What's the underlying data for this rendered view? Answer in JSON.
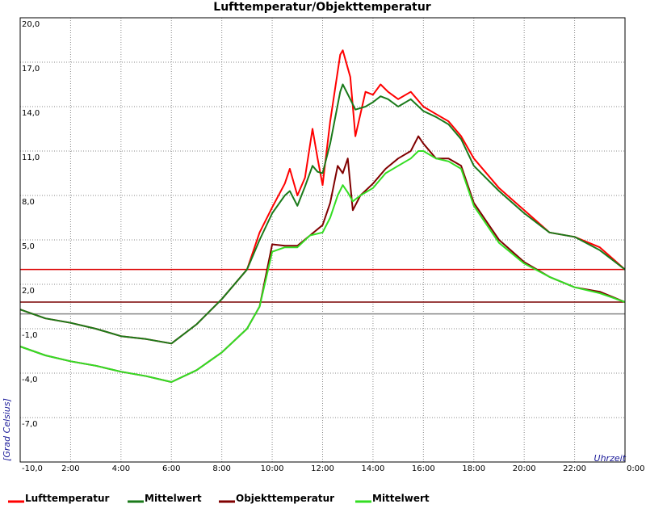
{
  "chart_data": {
    "type": "line",
    "title": "Lufttemperatur/Objekttemperatur",
    "xlabel": "Uhrzeit",
    "ylabel": "[Grad Celsius]",
    "xlim": [
      0,
      24
    ],
    "ylim": [
      -10,
      20
    ],
    "y_ticks": [
      "20,0",
      "17,0",
      "14,0",
      "11,0",
      "8,0",
      "5,0",
      "2,0",
      "-1,0",
      "-4,0",
      "-7,0",
      "-10,0"
    ],
    "y_tick_values": [
      20,
      17,
      14,
      11,
      8,
      5,
      2,
      -1,
      -4,
      -7,
      -10
    ],
    "x_ticks": [
      "2:00",
      "4:00",
      "6:00",
      "8:00",
      "10:00",
      "12:00",
      "14:00",
      "16:00",
      "18:00",
      "20:00",
      "22:00",
      "0:00"
    ],
    "x_tick_values": [
      2,
      4,
      6,
      8,
      10,
      12,
      14,
      16,
      18,
      20,
      22,
      24
    ],
    "grid": true,
    "legend_position": "bottom",
    "reference_lines": [
      {
        "y": 3.0,
        "color": "#dd0000"
      },
      {
        "y": 0.8,
        "color": "#7a0000"
      },
      {
        "y": 0.0,
        "color": "#888888"
      }
    ],
    "series": [
      {
        "name": "Lufttemperatur",
        "color": "#ff0000",
        "x": [
          0,
          1,
          2,
          3,
          4,
          5,
          6,
          7,
          8,
          9,
          9.5,
          10,
          10.5,
          10.7,
          11,
          11.3,
          11.6,
          11.8,
          12,
          12.3,
          12.7,
          12.8,
          13.1,
          13.3,
          13.7,
          14,
          14.3,
          14.6,
          15,
          15.5,
          16,
          16.5,
          17,
          17.5,
          18,
          19,
          20,
          21,
          22,
          23,
          24
        ],
        "y": [
          0.3,
          -0.3,
          -0.6,
          -1.0,
          -1.5,
          -1.7,
          -2.0,
          -0.7,
          1.0,
          3.0,
          5.5,
          7.2,
          8.8,
          9.8,
          8.0,
          9.2,
          12.5,
          10.5,
          8.7,
          13.0,
          17.5,
          17.8,
          16.0,
          12.0,
          15.0,
          14.8,
          15.5,
          15.0,
          14.5,
          15.0,
          14.0,
          13.5,
          13.0,
          12.0,
          10.5,
          8.5,
          7.0,
          5.5,
          5.2,
          4.5,
          3.0
        ]
      },
      {
        "name": "Mittelwert",
        "color": "#1a7a1a",
        "x": [
          0,
          1,
          2,
          3,
          4,
          5,
          6,
          7,
          8,
          9,
          9.5,
          10,
          10.5,
          10.7,
          11,
          11.3,
          11.6,
          11.8,
          12,
          12.3,
          12.7,
          12.8,
          13.1,
          13.3,
          13.7,
          14,
          14.3,
          14.6,
          15,
          15.5,
          16,
          16.5,
          17,
          17.5,
          18,
          19,
          20,
          21,
          22,
          23,
          24
        ],
        "y": [
          0.3,
          -0.3,
          -0.6,
          -1.0,
          -1.5,
          -1.7,
          -2.0,
          -0.7,
          1.0,
          3.0,
          5.0,
          6.8,
          8.0,
          8.3,
          7.3,
          8.6,
          10.0,
          9.6,
          9.5,
          11.5,
          15.0,
          15.5,
          14.5,
          13.8,
          14.0,
          14.3,
          14.7,
          14.5,
          14.0,
          14.5,
          13.7,
          13.3,
          12.8,
          11.8,
          10.0,
          8.3,
          6.8,
          5.5,
          5.2,
          4.3,
          3.0
        ]
      },
      {
        "name": "Objekttemperatur",
        "color": "#800000",
        "x": [
          0,
          1,
          2,
          3,
          4,
          5,
          6,
          7,
          8,
          9,
          9.5,
          10,
          10.5,
          11,
          11.5,
          12,
          12.3,
          12.6,
          12.8,
          13.0,
          13.2,
          13.5,
          14,
          14.5,
          15,
          15.5,
          15.8,
          16,
          16.5,
          17,
          17.5,
          18,
          19,
          20,
          21,
          22,
          23,
          24
        ],
        "y": [
          -2.2,
          -2.8,
          -3.2,
          -3.5,
          -3.9,
          -4.2,
          -4.6,
          -3.8,
          -2.6,
          -1.0,
          0.5,
          4.7,
          4.6,
          4.6,
          5.3,
          6.0,
          7.5,
          10.0,
          9.5,
          10.5,
          7.0,
          8.0,
          8.8,
          9.8,
          10.5,
          11.0,
          12.0,
          11.5,
          10.5,
          10.5,
          10.0,
          7.5,
          5.0,
          3.5,
          2.5,
          1.8,
          1.5,
          0.8
        ]
      },
      {
        "name": "Mittelwert",
        "color": "#33dd22",
        "x": [
          0,
          1,
          2,
          3,
          4,
          5,
          6,
          7,
          8,
          9,
          9.5,
          10,
          10.5,
          11,
          11.5,
          12,
          12.3,
          12.6,
          12.8,
          13.0,
          13.2,
          13.5,
          14,
          14.5,
          15,
          15.5,
          15.8,
          16,
          16.5,
          17,
          17.5,
          18,
          19,
          20,
          21,
          22,
          23,
          24
        ],
        "y": [
          -2.2,
          -2.8,
          -3.2,
          -3.5,
          -3.9,
          -4.2,
          -4.6,
          -3.8,
          -2.6,
          -1.0,
          0.5,
          4.2,
          4.5,
          4.5,
          5.3,
          5.5,
          6.5,
          8.0,
          8.7,
          8.2,
          7.6,
          8.0,
          8.5,
          9.5,
          10.0,
          10.5,
          11.0,
          11.0,
          10.5,
          10.3,
          9.8,
          7.3,
          4.8,
          3.4,
          2.5,
          1.8,
          1.4,
          0.8
        ]
      }
    ]
  }
}
